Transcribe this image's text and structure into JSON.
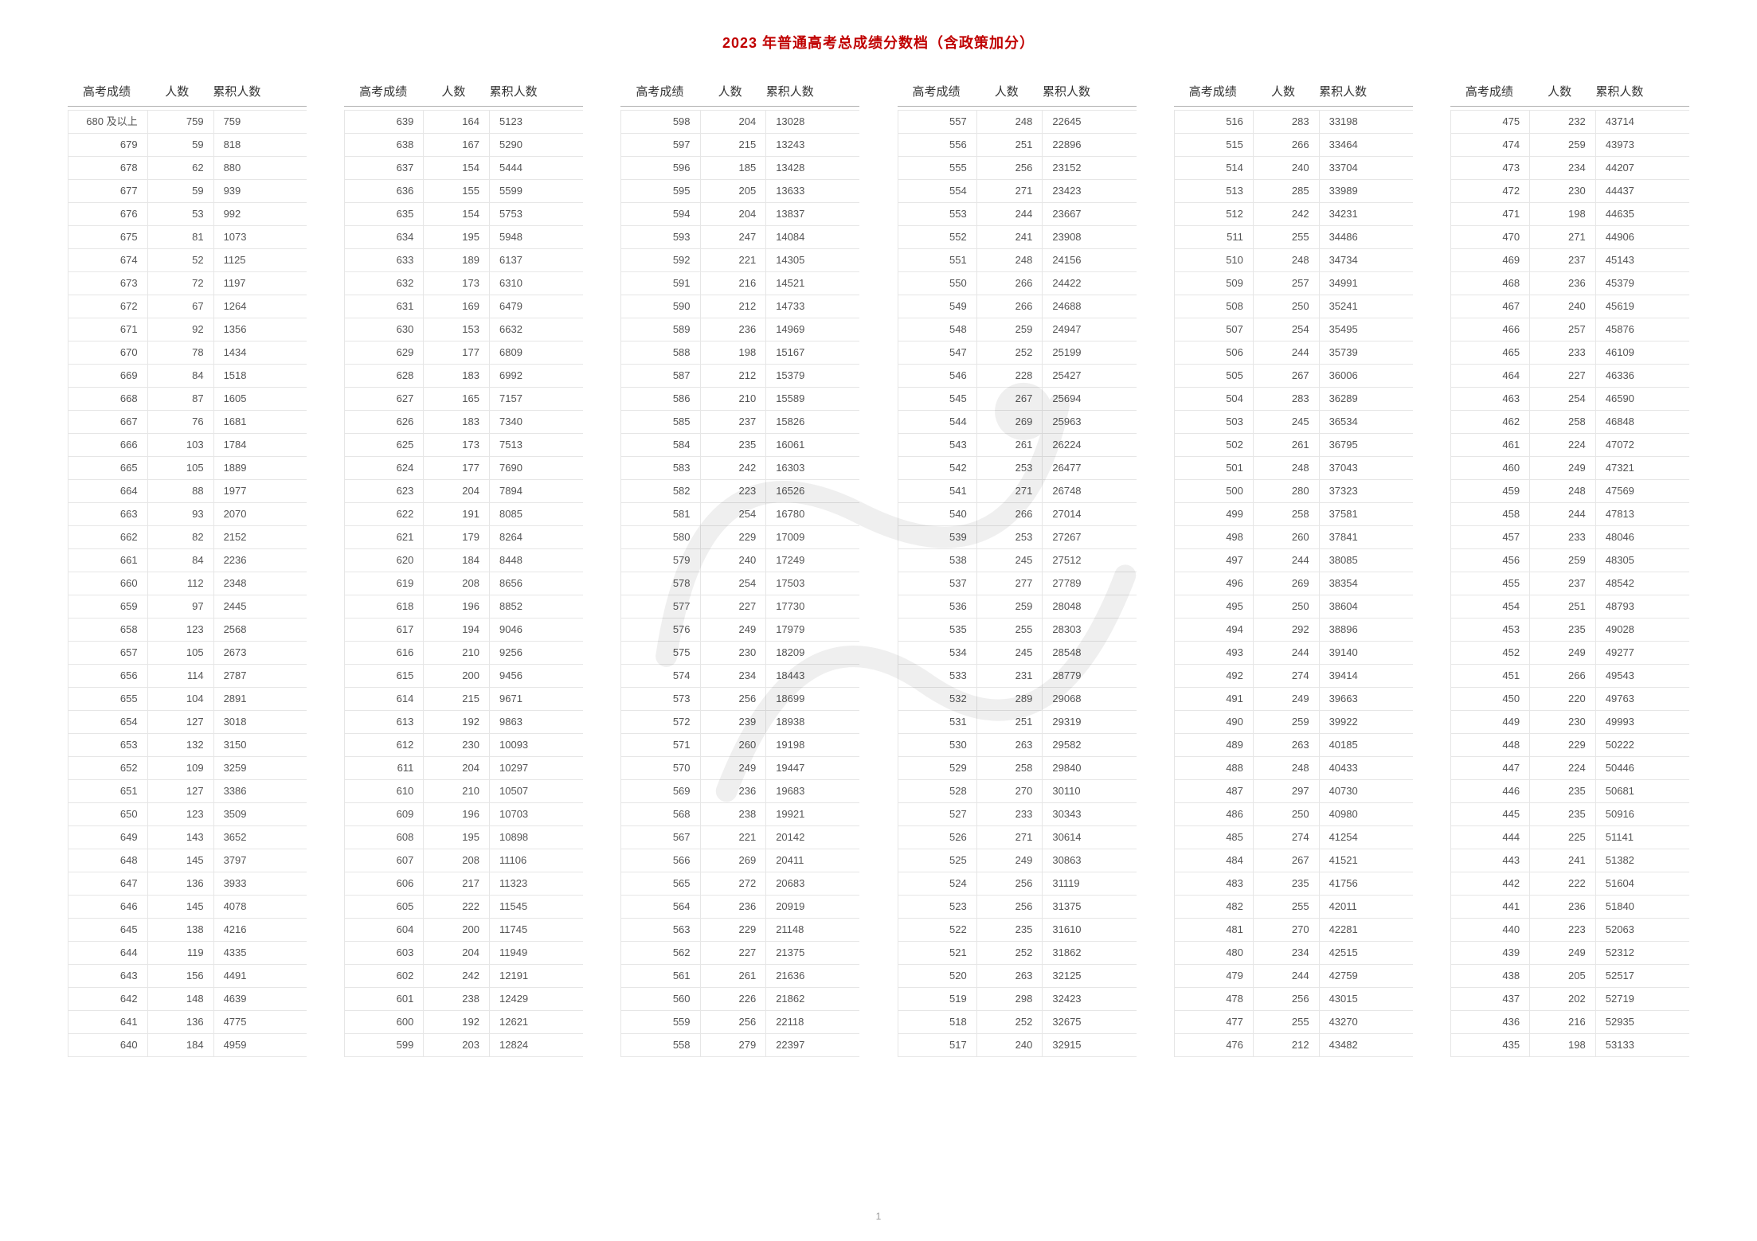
{
  "title": "2023 年普通高考总成绩分数档（含政策加分）",
  "page_number": "1",
  "header": {
    "score_label": "高考成绩",
    "count_label": "人数",
    "cumulative_label": "累积人数"
  },
  "style": {
    "title_color": "#c00000",
    "title_fontsize": 18,
    "body_fontsize": 13,
    "header_fontsize": 15,
    "border_color": "#e6e6e6",
    "header_border_color": "#b0b0b0",
    "text_color": "#555555",
    "background_color": "#ffffff",
    "num_columns": 6,
    "rows_per_column": 40
  },
  "columns": [
    [
      [
        "680 及以上",
        "759",
        "759"
      ],
      [
        "679",
        "59",
        "818"
      ],
      [
        "678",
        "62",
        "880"
      ],
      [
        "677",
        "59",
        "939"
      ],
      [
        "676",
        "53",
        "992"
      ],
      [
        "675",
        "81",
        "1073"
      ],
      [
        "674",
        "52",
        "1125"
      ],
      [
        "673",
        "72",
        "1197"
      ],
      [
        "672",
        "67",
        "1264"
      ],
      [
        "671",
        "92",
        "1356"
      ],
      [
        "670",
        "78",
        "1434"
      ],
      [
        "669",
        "84",
        "1518"
      ],
      [
        "668",
        "87",
        "1605"
      ],
      [
        "667",
        "76",
        "1681"
      ],
      [
        "666",
        "103",
        "1784"
      ],
      [
        "665",
        "105",
        "1889"
      ],
      [
        "664",
        "88",
        "1977"
      ],
      [
        "663",
        "93",
        "2070"
      ],
      [
        "662",
        "82",
        "2152"
      ],
      [
        "661",
        "84",
        "2236"
      ],
      [
        "660",
        "112",
        "2348"
      ],
      [
        "659",
        "97",
        "2445"
      ],
      [
        "658",
        "123",
        "2568"
      ],
      [
        "657",
        "105",
        "2673"
      ],
      [
        "656",
        "114",
        "2787"
      ],
      [
        "655",
        "104",
        "2891"
      ],
      [
        "654",
        "127",
        "3018"
      ],
      [
        "653",
        "132",
        "3150"
      ],
      [
        "652",
        "109",
        "3259"
      ],
      [
        "651",
        "127",
        "3386"
      ],
      [
        "650",
        "123",
        "3509"
      ],
      [
        "649",
        "143",
        "3652"
      ],
      [
        "648",
        "145",
        "3797"
      ],
      [
        "647",
        "136",
        "3933"
      ],
      [
        "646",
        "145",
        "4078"
      ],
      [
        "645",
        "138",
        "4216"
      ],
      [
        "644",
        "119",
        "4335"
      ],
      [
        "643",
        "156",
        "4491"
      ],
      [
        "642",
        "148",
        "4639"
      ],
      [
        "641",
        "136",
        "4775"
      ],
      [
        "640",
        "184",
        "4959"
      ]
    ],
    [
      [
        "639",
        "164",
        "5123"
      ],
      [
        "638",
        "167",
        "5290"
      ],
      [
        "637",
        "154",
        "5444"
      ],
      [
        "636",
        "155",
        "5599"
      ],
      [
        "635",
        "154",
        "5753"
      ],
      [
        "634",
        "195",
        "5948"
      ],
      [
        "633",
        "189",
        "6137"
      ],
      [
        "632",
        "173",
        "6310"
      ],
      [
        "631",
        "169",
        "6479"
      ],
      [
        "630",
        "153",
        "6632"
      ],
      [
        "629",
        "177",
        "6809"
      ],
      [
        "628",
        "183",
        "6992"
      ],
      [
        "627",
        "165",
        "7157"
      ],
      [
        "626",
        "183",
        "7340"
      ],
      [
        "625",
        "173",
        "7513"
      ],
      [
        "624",
        "177",
        "7690"
      ],
      [
        "623",
        "204",
        "7894"
      ],
      [
        "622",
        "191",
        "8085"
      ],
      [
        "621",
        "179",
        "8264"
      ],
      [
        "620",
        "184",
        "8448"
      ],
      [
        "619",
        "208",
        "8656"
      ],
      [
        "618",
        "196",
        "8852"
      ],
      [
        "617",
        "194",
        "9046"
      ],
      [
        "616",
        "210",
        "9256"
      ],
      [
        "615",
        "200",
        "9456"
      ],
      [
        "614",
        "215",
        "9671"
      ],
      [
        "613",
        "192",
        "9863"
      ],
      [
        "612",
        "230",
        "10093"
      ],
      [
        "611",
        "204",
        "10297"
      ],
      [
        "610",
        "210",
        "10507"
      ],
      [
        "609",
        "196",
        "10703"
      ],
      [
        "608",
        "195",
        "10898"
      ],
      [
        "607",
        "208",
        "11106"
      ],
      [
        "606",
        "217",
        "11323"
      ],
      [
        "605",
        "222",
        "11545"
      ],
      [
        "604",
        "200",
        "11745"
      ],
      [
        "603",
        "204",
        "11949"
      ],
      [
        "602",
        "242",
        "12191"
      ],
      [
        "601",
        "238",
        "12429"
      ],
      [
        "600",
        "192",
        "12621"
      ],
      [
        "599",
        "203",
        "12824"
      ]
    ],
    [
      [
        "598",
        "204",
        "13028"
      ],
      [
        "597",
        "215",
        "13243"
      ],
      [
        "596",
        "185",
        "13428"
      ],
      [
        "595",
        "205",
        "13633"
      ],
      [
        "594",
        "204",
        "13837"
      ],
      [
        "593",
        "247",
        "14084"
      ],
      [
        "592",
        "221",
        "14305"
      ],
      [
        "591",
        "216",
        "14521"
      ],
      [
        "590",
        "212",
        "14733"
      ],
      [
        "589",
        "236",
        "14969"
      ],
      [
        "588",
        "198",
        "15167"
      ],
      [
        "587",
        "212",
        "15379"
      ],
      [
        "586",
        "210",
        "15589"
      ],
      [
        "585",
        "237",
        "15826"
      ],
      [
        "584",
        "235",
        "16061"
      ],
      [
        "583",
        "242",
        "16303"
      ],
      [
        "582",
        "223",
        "16526"
      ],
      [
        "581",
        "254",
        "16780"
      ],
      [
        "580",
        "229",
        "17009"
      ],
      [
        "579",
        "240",
        "17249"
      ],
      [
        "578",
        "254",
        "17503"
      ],
      [
        "577",
        "227",
        "17730"
      ],
      [
        "576",
        "249",
        "17979"
      ],
      [
        "575",
        "230",
        "18209"
      ],
      [
        "574",
        "234",
        "18443"
      ],
      [
        "573",
        "256",
        "18699"
      ],
      [
        "572",
        "239",
        "18938"
      ],
      [
        "571",
        "260",
        "19198"
      ],
      [
        "570",
        "249",
        "19447"
      ],
      [
        "569",
        "236",
        "19683"
      ],
      [
        "568",
        "238",
        "19921"
      ],
      [
        "567",
        "221",
        "20142"
      ],
      [
        "566",
        "269",
        "20411"
      ],
      [
        "565",
        "272",
        "20683"
      ],
      [
        "564",
        "236",
        "20919"
      ],
      [
        "563",
        "229",
        "21148"
      ],
      [
        "562",
        "227",
        "21375"
      ],
      [
        "561",
        "261",
        "21636"
      ],
      [
        "560",
        "226",
        "21862"
      ],
      [
        "559",
        "256",
        "22118"
      ],
      [
        "558",
        "279",
        "22397"
      ]
    ],
    [
      [
        "557",
        "248",
        "22645"
      ],
      [
        "556",
        "251",
        "22896"
      ],
      [
        "555",
        "256",
        "23152"
      ],
      [
        "554",
        "271",
        "23423"
      ],
      [
        "553",
        "244",
        "23667"
      ],
      [
        "552",
        "241",
        "23908"
      ],
      [
        "551",
        "248",
        "24156"
      ],
      [
        "550",
        "266",
        "24422"
      ],
      [
        "549",
        "266",
        "24688"
      ],
      [
        "548",
        "259",
        "24947"
      ],
      [
        "547",
        "252",
        "25199"
      ],
      [
        "546",
        "228",
        "25427"
      ],
      [
        "545",
        "267",
        "25694"
      ],
      [
        "544",
        "269",
        "25963"
      ],
      [
        "543",
        "261",
        "26224"
      ],
      [
        "542",
        "253",
        "26477"
      ],
      [
        "541",
        "271",
        "26748"
      ],
      [
        "540",
        "266",
        "27014"
      ],
      [
        "539",
        "253",
        "27267"
      ],
      [
        "538",
        "245",
        "27512"
      ],
      [
        "537",
        "277",
        "27789"
      ],
      [
        "536",
        "259",
        "28048"
      ],
      [
        "535",
        "255",
        "28303"
      ],
      [
        "534",
        "245",
        "28548"
      ],
      [
        "533",
        "231",
        "28779"
      ],
      [
        "532",
        "289",
        "29068"
      ],
      [
        "531",
        "251",
        "29319"
      ],
      [
        "530",
        "263",
        "29582"
      ],
      [
        "529",
        "258",
        "29840"
      ],
      [
        "528",
        "270",
        "30110"
      ],
      [
        "527",
        "233",
        "30343"
      ],
      [
        "526",
        "271",
        "30614"
      ],
      [
        "525",
        "249",
        "30863"
      ],
      [
        "524",
        "256",
        "31119"
      ],
      [
        "523",
        "256",
        "31375"
      ],
      [
        "522",
        "235",
        "31610"
      ],
      [
        "521",
        "252",
        "31862"
      ],
      [
        "520",
        "263",
        "32125"
      ],
      [
        "519",
        "298",
        "32423"
      ],
      [
        "518",
        "252",
        "32675"
      ],
      [
        "517",
        "240",
        "32915"
      ]
    ],
    [
      [
        "516",
        "283",
        "33198"
      ],
      [
        "515",
        "266",
        "33464"
      ],
      [
        "514",
        "240",
        "33704"
      ],
      [
        "513",
        "285",
        "33989"
      ],
      [
        "512",
        "242",
        "34231"
      ],
      [
        "511",
        "255",
        "34486"
      ],
      [
        "510",
        "248",
        "34734"
      ],
      [
        "509",
        "257",
        "34991"
      ],
      [
        "508",
        "250",
        "35241"
      ],
      [
        "507",
        "254",
        "35495"
      ],
      [
        "506",
        "244",
        "35739"
      ],
      [
        "505",
        "267",
        "36006"
      ],
      [
        "504",
        "283",
        "36289"
      ],
      [
        "503",
        "245",
        "36534"
      ],
      [
        "502",
        "261",
        "36795"
      ],
      [
        "501",
        "248",
        "37043"
      ],
      [
        "500",
        "280",
        "37323"
      ],
      [
        "499",
        "258",
        "37581"
      ],
      [
        "498",
        "260",
        "37841"
      ],
      [
        "497",
        "244",
        "38085"
      ],
      [
        "496",
        "269",
        "38354"
      ],
      [
        "495",
        "250",
        "38604"
      ],
      [
        "494",
        "292",
        "38896"
      ],
      [
        "493",
        "244",
        "39140"
      ],
      [
        "492",
        "274",
        "39414"
      ],
      [
        "491",
        "249",
        "39663"
      ],
      [
        "490",
        "259",
        "39922"
      ],
      [
        "489",
        "263",
        "40185"
      ],
      [
        "488",
        "248",
        "40433"
      ],
      [
        "487",
        "297",
        "40730"
      ],
      [
        "486",
        "250",
        "40980"
      ],
      [
        "485",
        "274",
        "41254"
      ],
      [
        "484",
        "267",
        "41521"
      ],
      [
        "483",
        "235",
        "41756"
      ],
      [
        "482",
        "255",
        "42011"
      ],
      [
        "481",
        "270",
        "42281"
      ],
      [
        "480",
        "234",
        "42515"
      ],
      [
        "479",
        "244",
        "42759"
      ],
      [
        "478",
        "256",
        "43015"
      ],
      [
        "477",
        "255",
        "43270"
      ],
      [
        "476",
        "212",
        "43482"
      ]
    ],
    [
      [
        "475",
        "232",
        "43714"
      ],
      [
        "474",
        "259",
        "43973"
      ],
      [
        "473",
        "234",
        "44207"
      ],
      [
        "472",
        "230",
        "44437"
      ],
      [
        "471",
        "198",
        "44635"
      ],
      [
        "470",
        "271",
        "44906"
      ],
      [
        "469",
        "237",
        "45143"
      ],
      [
        "468",
        "236",
        "45379"
      ],
      [
        "467",
        "240",
        "45619"
      ],
      [
        "466",
        "257",
        "45876"
      ],
      [
        "465",
        "233",
        "46109"
      ],
      [
        "464",
        "227",
        "46336"
      ],
      [
        "463",
        "254",
        "46590"
      ],
      [
        "462",
        "258",
        "46848"
      ],
      [
        "461",
        "224",
        "47072"
      ],
      [
        "460",
        "249",
        "47321"
      ],
      [
        "459",
        "248",
        "47569"
      ],
      [
        "458",
        "244",
        "47813"
      ],
      [
        "457",
        "233",
        "48046"
      ],
      [
        "456",
        "259",
        "48305"
      ],
      [
        "455",
        "237",
        "48542"
      ],
      [
        "454",
        "251",
        "48793"
      ],
      [
        "453",
        "235",
        "49028"
      ],
      [
        "452",
        "249",
        "49277"
      ],
      [
        "451",
        "266",
        "49543"
      ],
      [
        "450",
        "220",
        "49763"
      ],
      [
        "449",
        "230",
        "49993"
      ],
      [
        "448",
        "229",
        "50222"
      ],
      [
        "447",
        "224",
        "50446"
      ],
      [
        "446",
        "235",
        "50681"
      ],
      [
        "445",
        "235",
        "50916"
      ],
      [
        "444",
        "225",
        "51141"
      ],
      [
        "443",
        "241",
        "51382"
      ],
      [
        "442",
        "222",
        "51604"
      ],
      [
        "441",
        "236",
        "51840"
      ],
      [
        "440",
        "223",
        "52063"
      ],
      [
        "439",
        "249",
        "52312"
      ],
      [
        "438",
        "205",
        "52517"
      ],
      [
        "437",
        "202",
        "52719"
      ],
      [
        "436",
        "216",
        "52935"
      ],
      [
        "435",
        "198",
        "53133"
      ]
    ]
  ]
}
